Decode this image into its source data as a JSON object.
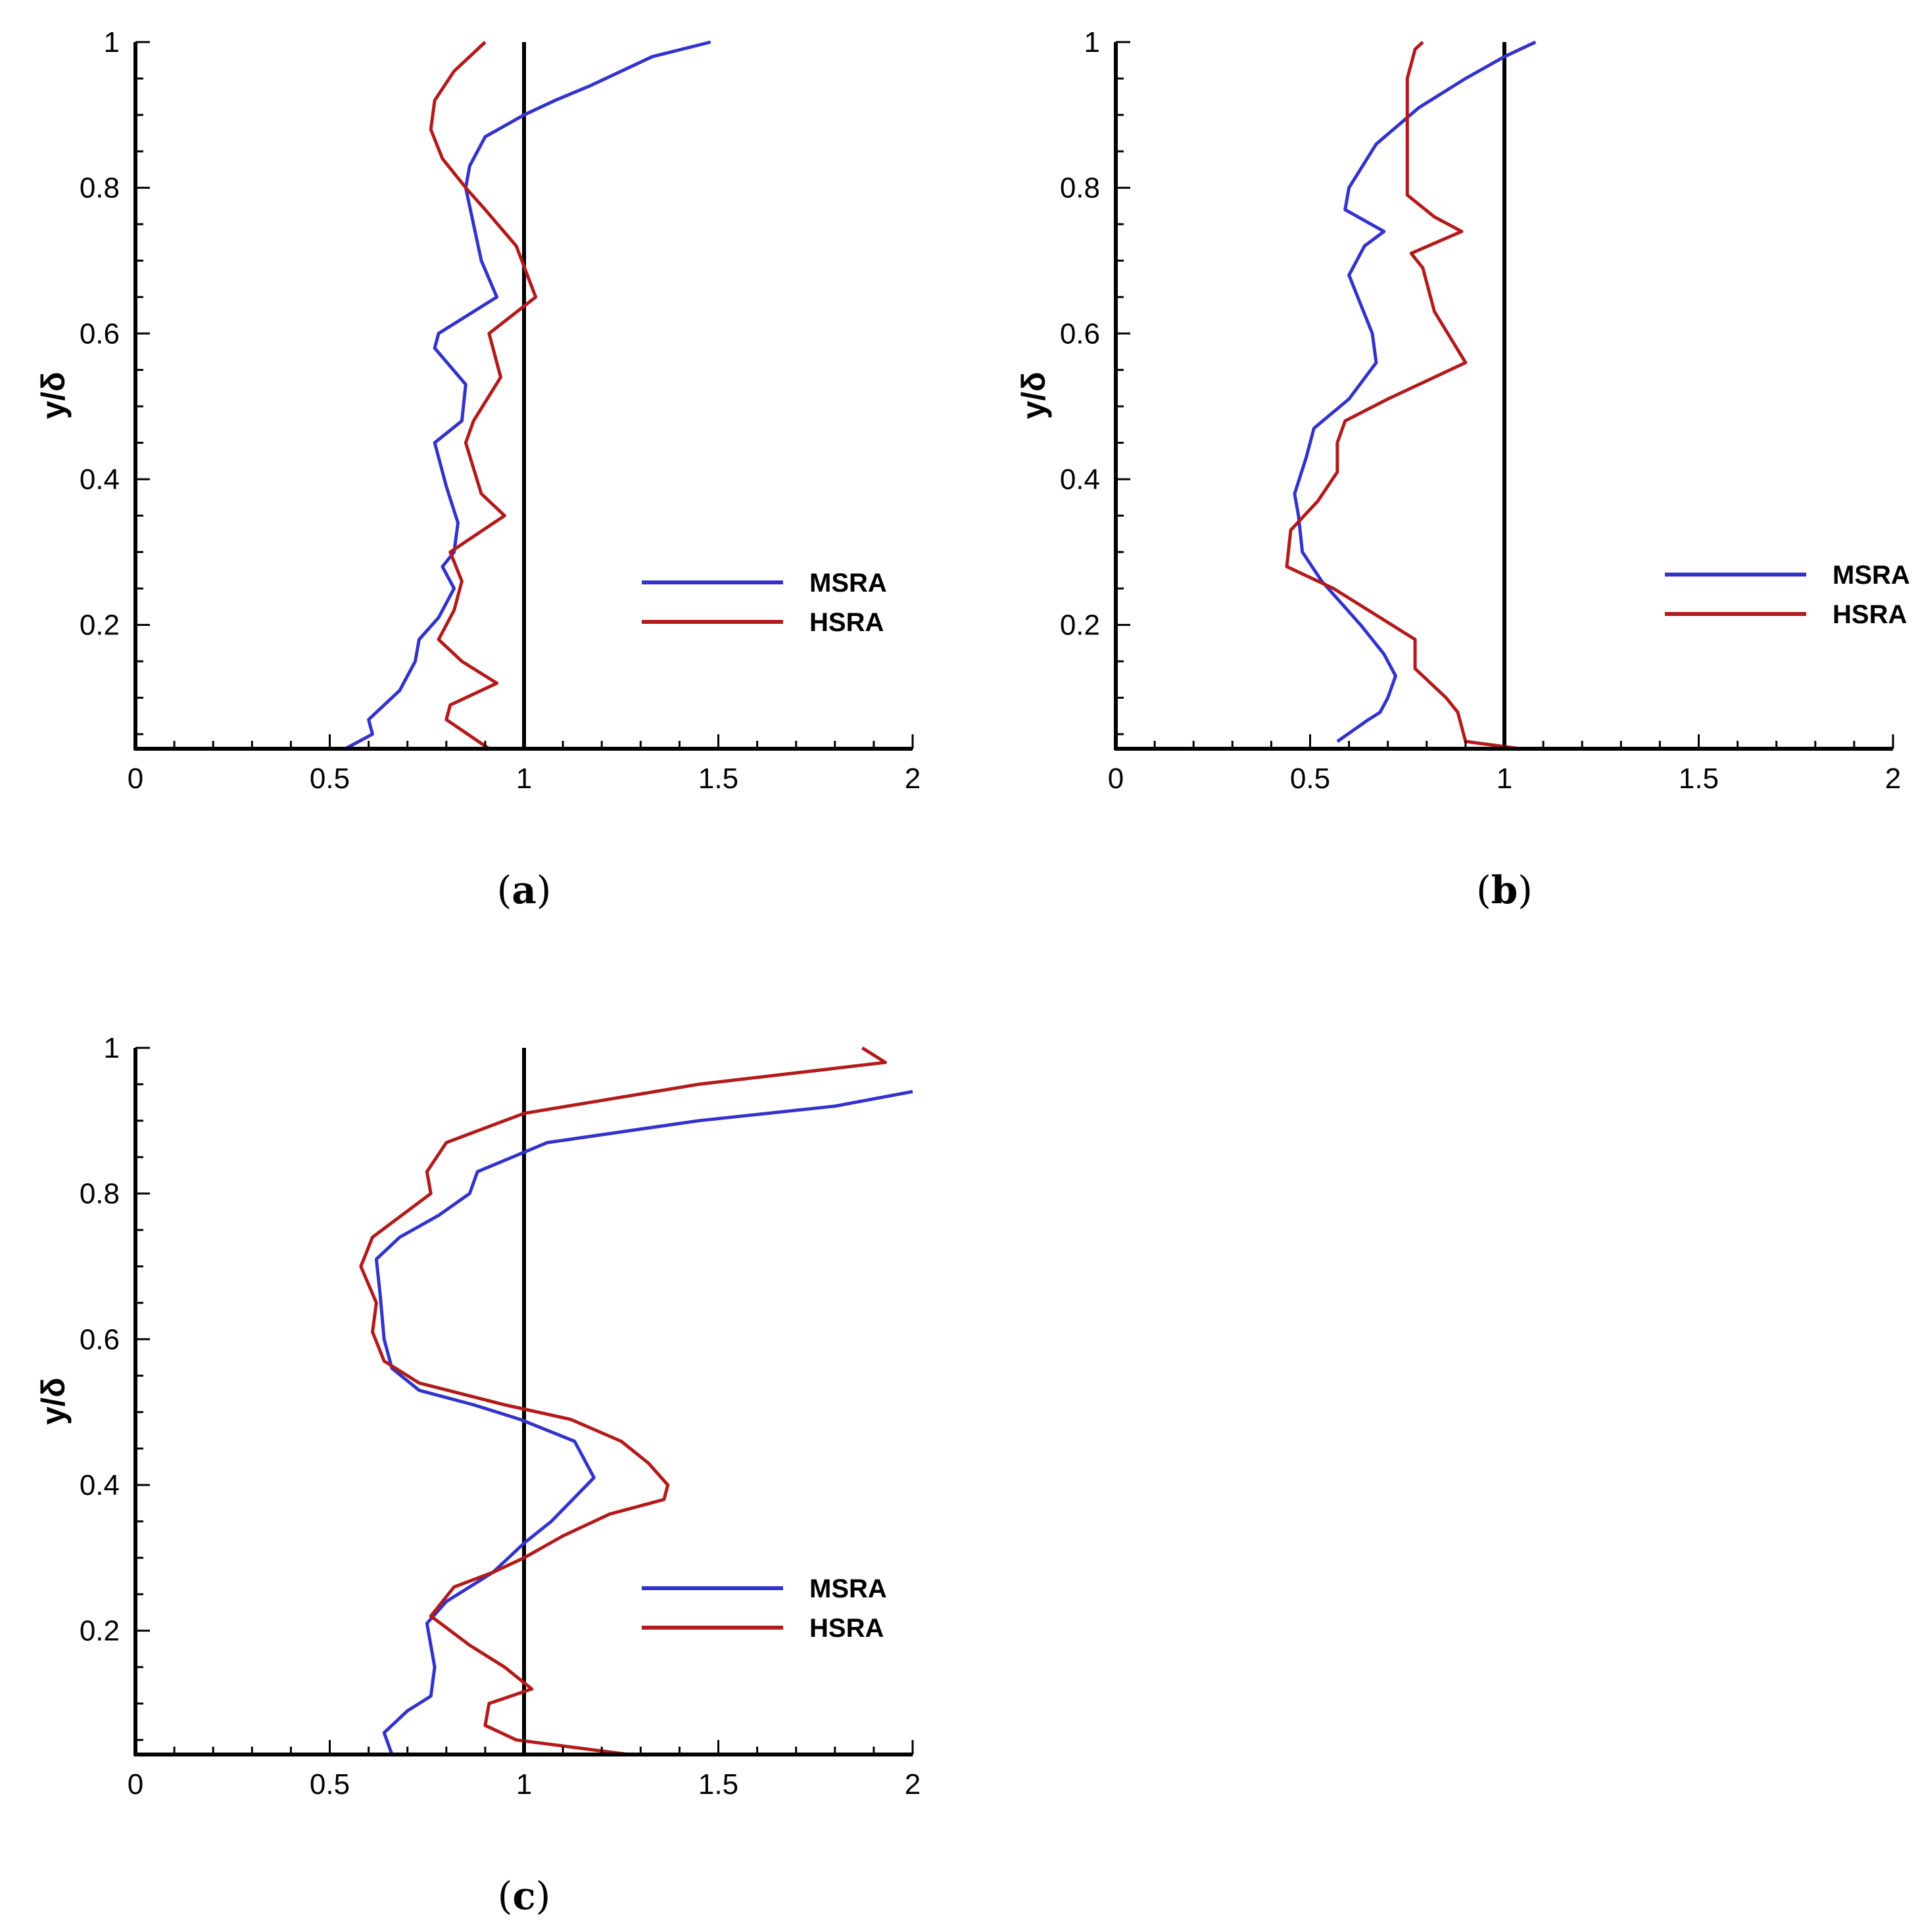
{
  "figure": {
    "colors": {
      "MSRA": "#3333cc",
      "HSRA": "#b31a1a",
      "axis": "#000000",
      "reference": "#000000"
    }
  },
  "chart_data": [
    {
      "id": "a",
      "type": "line",
      "caption": "(a)",
      "caption_letter": "a",
      "ylabel": "y/δ",
      "xlabel": "",
      "xlim": [
        0,
        2
      ],
      "ylim": [
        0.03,
        1
      ],
      "xticks": [
        "0",
        "0.5",
        "1",
        "1.5",
        "2"
      ],
      "yticks": [
        "0.2",
        "0.4",
        "0.6",
        "0.8",
        "1"
      ],
      "reference_x": 1,
      "legend": {
        "position": "right",
        "entries": [
          "MSRA",
          "HSRA"
        ]
      },
      "series": [
        {
          "name": "MSRA",
          "points": [
            [
              0.54,
              0.03
            ],
            [
              0.61,
              0.05
            ],
            [
              0.6,
              0.07
            ],
            [
              0.68,
              0.11
            ],
            [
              0.72,
              0.15
            ],
            [
              0.73,
              0.18
            ],
            [
              0.78,
              0.21
            ],
            [
              0.82,
              0.25
            ],
            [
              0.79,
              0.28
            ],
            [
              0.82,
              0.3
            ],
            [
              0.83,
              0.34
            ],
            [
              0.8,
              0.39
            ],
            [
              0.77,
              0.45
            ],
            [
              0.84,
              0.48
            ],
            [
              0.85,
              0.53
            ],
            [
              0.77,
              0.58
            ],
            [
              0.78,
              0.6
            ],
            [
              0.93,
              0.65
            ],
            [
              0.89,
              0.7
            ],
            [
              0.85,
              0.8
            ],
            [
              0.86,
              0.83
            ],
            [
              0.9,
              0.87
            ],
            [
              1.0,
              0.9
            ],
            [
              1.08,
              0.92
            ],
            [
              1.17,
              0.94
            ],
            [
              1.33,
              0.98
            ],
            [
              1.48,
              1.0
            ]
          ]
        },
        {
          "name": "HSRA",
          "points": [
            [
              0.91,
              0.03
            ],
            [
              0.8,
              0.07
            ],
            [
              0.81,
              0.09
            ],
            [
              0.93,
              0.12
            ],
            [
              0.84,
              0.15
            ],
            [
              0.78,
              0.18
            ],
            [
              0.82,
              0.22
            ],
            [
              0.84,
              0.26
            ],
            [
              0.81,
              0.3
            ],
            [
              0.95,
              0.35
            ],
            [
              0.89,
              0.38
            ],
            [
              0.85,
              0.45
            ],
            [
              0.87,
              0.48
            ],
            [
              0.94,
              0.54
            ],
            [
              0.92,
              0.58
            ],
            [
              0.91,
              0.6
            ],
            [
              1.03,
              0.65
            ],
            [
              0.98,
              0.72
            ],
            [
              0.9,
              0.77
            ],
            [
              0.85,
              0.8
            ],
            [
              0.79,
              0.84
            ],
            [
              0.76,
              0.88
            ],
            [
              0.77,
              0.92
            ],
            [
              0.82,
              0.96
            ],
            [
              0.9,
              1.0
            ]
          ]
        }
      ]
    },
    {
      "id": "b",
      "type": "line",
      "caption": "(b)",
      "caption_letter": "b",
      "ylabel": "y/δ",
      "xlabel": "",
      "xlim": [
        0,
        2
      ],
      "ylim": [
        0.03,
        1
      ],
      "xticks": [
        "0",
        "0.5",
        "1",
        "1.5",
        "2"
      ],
      "yticks": [
        "0.2",
        "0.4",
        "0.6",
        "0.8",
        "1"
      ],
      "reference_x": 1,
      "legend": {
        "position": "right",
        "entries": [
          "MSRA",
          "HSRA"
        ]
      },
      "series": [
        {
          "name": "MSRA",
          "points": [
            [
              0.57,
              0.04
            ],
            [
              0.65,
              0.07
            ],
            [
              0.68,
              0.08
            ],
            [
              0.7,
              0.1
            ],
            [
              0.72,
              0.13
            ],
            [
              0.69,
              0.16
            ],
            [
              0.63,
              0.2
            ],
            [
              0.53,
              0.26
            ],
            [
              0.48,
              0.3
            ],
            [
              0.47,
              0.35
            ],
            [
              0.46,
              0.38
            ],
            [
              0.49,
              0.43
            ],
            [
              0.51,
              0.47
            ],
            [
              0.6,
              0.51
            ],
            [
              0.67,
              0.56
            ],
            [
              0.66,
              0.6
            ],
            [
              0.6,
              0.68
            ],
            [
              0.64,
              0.72
            ],
            [
              0.69,
              0.74
            ],
            [
              0.59,
              0.77
            ],
            [
              0.6,
              0.8
            ],
            [
              0.67,
              0.86
            ],
            [
              0.78,
              0.91
            ],
            [
              0.9,
              0.95
            ],
            [
              1.0,
              0.98
            ],
            [
              1.08,
              1.0
            ]
          ]
        },
        {
          "name": "HSRA",
          "points": [
            [
              1.04,
              0.03
            ],
            [
              0.9,
              0.04
            ],
            [
              0.88,
              0.08
            ],
            [
              0.85,
              0.1
            ],
            [
              0.77,
              0.14
            ],
            [
              0.77,
              0.18
            ],
            [
              0.65,
              0.22
            ],
            [
              0.56,
              0.25
            ],
            [
              0.44,
              0.28
            ],
            [
              0.45,
              0.33
            ],
            [
              0.52,
              0.37
            ],
            [
              0.57,
              0.41
            ],
            [
              0.57,
              0.45
            ],
            [
              0.59,
              0.48
            ],
            [
              0.7,
              0.51
            ],
            [
              0.9,
              0.56
            ],
            [
              0.82,
              0.63
            ],
            [
              0.79,
              0.69
            ],
            [
              0.76,
              0.71
            ],
            [
              0.89,
              0.74
            ],
            [
              0.82,
              0.76
            ],
            [
              0.75,
              0.79
            ],
            [
              0.75,
              0.82
            ],
            [
              0.75,
              0.9
            ],
            [
              0.75,
              0.95
            ],
            [
              0.77,
              0.99
            ],
            [
              0.79,
              1.0
            ]
          ]
        }
      ]
    },
    {
      "id": "c",
      "type": "line",
      "caption": "(c)",
      "caption_letter": "c",
      "ylabel": "y/δ",
      "xlabel": "",
      "xlim": [
        0,
        2
      ],
      "ylim": [
        0.03,
        1
      ],
      "xticks": [
        "0",
        "0.5",
        "1",
        "1.5",
        "2"
      ],
      "yticks": [
        "0.2",
        "0.4",
        "0.6",
        "0.8",
        "1"
      ],
      "reference_x": 1,
      "legend": {
        "position": "right",
        "entries": [
          "MSRA",
          "HSRA"
        ]
      },
      "series": [
        {
          "name": "MSRA",
          "points": [
            [
              0.66,
              0.03
            ],
            [
              0.64,
              0.06
            ],
            [
              0.7,
              0.09
            ],
            [
              0.76,
              0.11
            ],
            [
              0.77,
              0.15
            ],
            [
              0.76,
              0.18
            ],
            [
              0.75,
              0.21
            ],
            [
              0.8,
              0.24
            ],
            [
              0.92,
              0.28
            ],
            [
              1.0,
              0.32
            ],
            [
              1.07,
              0.35
            ],
            [
              1.18,
              0.41
            ],
            [
              1.13,
              0.46
            ],
            [
              0.99,
              0.49
            ],
            [
              0.87,
              0.51
            ],
            [
              0.73,
              0.53
            ],
            [
              0.66,
              0.56
            ],
            [
              0.64,
              0.6
            ],
            [
              0.63,
              0.66
            ],
            [
              0.62,
              0.71
            ],
            [
              0.68,
              0.74
            ],
            [
              0.78,
              0.77
            ],
            [
              0.86,
              0.8
            ],
            [
              0.88,
              0.83
            ],
            [
              0.97,
              0.85
            ],
            [
              1.06,
              0.87
            ],
            [
              1.45,
              0.9
            ],
            [
              1.8,
              0.92
            ],
            [
              2.0,
              0.94
            ]
          ]
        },
        {
          "name": "HSRA",
          "points": [
            [
              1.27,
              0.03
            ],
            [
              0.98,
              0.05
            ],
            [
              0.9,
              0.07
            ],
            [
              0.91,
              0.1
            ],
            [
              1.02,
              0.12
            ],
            [
              0.95,
              0.15
            ],
            [
              0.86,
              0.18
            ],
            [
              0.76,
              0.22
            ],
            [
              0.82,
              0.26
            ],
            [
              0.92,
              0.28
            ],
            [
              1.0,
              0.3
            ],
            [
              1.1,
              0.33
            ],
            [
              1.22,
              0.36
            ],
            [
              1.36,
              0.38
            ],
            [
              1.37,
              0.4
            ],
            [
              1.32,
              0.43
            ],
            [
              1.25,
              0.46
            ],
            [
              1.12,
              0.49
            ],
            [
              0.95,
              0.51
            ],
            [
              0.73,
              0.54
            ],
            [
              0.64,
              0.57
            ],
            [
              0.61,
              0.61
            ],
            [
              0.62,
              0.65
            ],
            [
              0.58,
              0.7
            ],
            [
              0.61,
              0.74
            ],
            [
              0.76,
              0.8
            ],
            [
              0.75,
              0.83
            ],
            [
              0.8,
              0.87
            ],
            [
              0.9,
              0.89
            ],
            [
              1.0,
              0.91
            ],
            [
              1.45,
              0.95
            ],
            [
              1.93,
              0.98
            ],
            [
              1.87,
              1.0
            ]
          ]
        }
      ]
    }
  ]
}
